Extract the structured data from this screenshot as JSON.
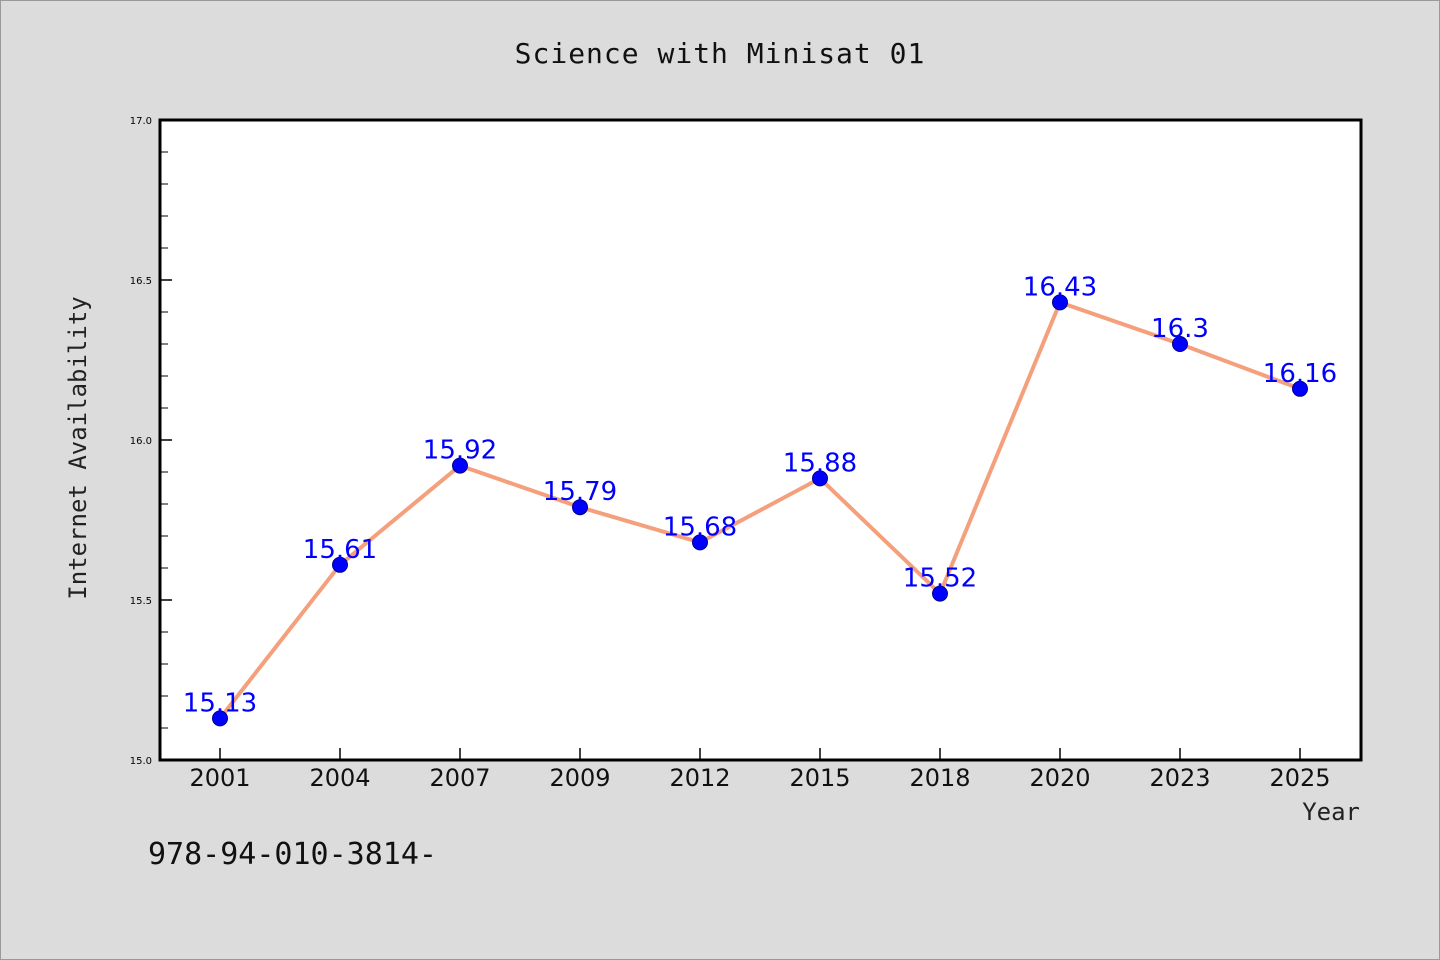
{
  "chart_data": {
    "type": "line",
    "title": "Science with Minisat 01",
    "xlabel": "Year",
    "ylabel": "Internet Availability",
    "categories": [
      "2001",
      "2004",
      "2007",
      "2009",
      "2012",
      "2015",
      "2018",
      "2020",
      "2023",
      "2025"
    ],
    "series": [
      {
        "values": [
          15.13,
          15.61,
          15.92,
          15.79,
          15.68,
          15.88,
          15.52,
          16.43,
          16.3,
          16.16
        ],
        "data_labels": [
          "15.13",
          "15.61",
          "15.92",
          "15.79",
          "15.68",
          "15.88",
          "15.52",
          "16.43",
          "16.3",
          "16.16"
        ]
      }
    ],
    "ylim": [
      15.0,
      17.0
    ],
    "yticks": [
      "15.0",
      "15.5",
      "16.0",
      "16.5",
      "17.0"
    ],
    "grid": false,
    "legend": "none",
    "colors": {
      "line": "#f4a07c",
      "marker": "#0000ff",
      "label": "#0000ff",
      "background": "#dcdcdc",
      "plot_background": "#ffffff"
    }
  },
  "footer_text": "978-94-010-3814-"
}
